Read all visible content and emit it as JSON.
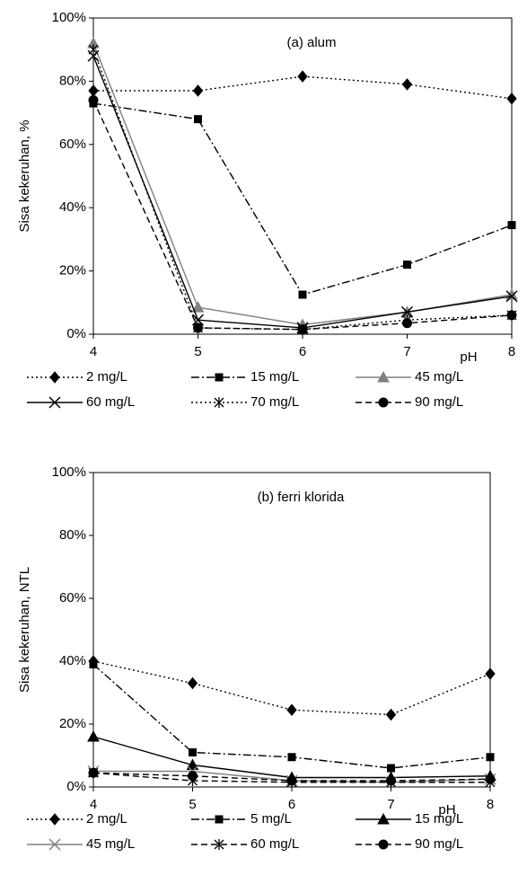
{
  "chart_data": [
    {
      "type": "line",
      "annotation": "(a) alum",
      "ylabel": "Sisa kekeruhan, %",
      "xlabel": "pH",
      "x": [
        4,
        5,
        6,
        7,
        8
      ],
      "xlim": [
        4,
        8
      ],
      "xticks": [
        4,
        5,
        6,
        7,
        8
      ],
      "ylim": [
        0,
        100
      ],
      "yticks": [
        {
          "value": 0,
          "label": "0%"
        },
        {
          "value": 20,
          "label": "20%"
        },
        {
          "value": 40,
          "label": "40%"
        },
        {
          "value": 60,
          "label": "60%"
        },
        {
          "value": 80,
          "label": "80%"
        },
        {
          "value": 100,
          "label": "100%"
        }
      ],
      "grid": false,
      "legend": "bottom",
      "series": [
        {
          "name": "2 mg/L",
          "color": "#000000",
          "marker": "diamond",
          "dash": "dotted",
          "values": [
            77,
            77,
            81.5,
            79,
            74.5
          ]
        },
        {
          "name": "15 mg/L",
          "color": "#000000",
          "marker": "square",
          "dash": "dashdot",
          "values": [
            73,
            68,
            12.5,
            22,
            34.5
          ]
        },
        {
          "name": "45 mg/L",
          "color": "#808080",
          "marker": "triangle",
          "dash": "solid",
          "values": [
            92,
            8.5,
            3,
            7,
            12.5
          ]
        },
        {
          "name": "60 mg/L",
          "color": "#000000",
          "marker": "x",
          "dash": "solid",
          "values": [
            88,
            4.5,
            2,
            7,
            12
          ]
        },
        {
          "name": "70 mg/L",
          "color": "#000000",
          "marker": "asterisk",
          "dash": "dotted",
          "values": [
            90,
            2,
            1.5,
            4.5,
            6
          ]
        },
        {
          "name": "90 mg/L",
          "color": "#000000",
          "marker": "circle",
          "dash": "dashed",
          "values": [
            74,
            2,
            1.5,
            3.5,
            6
          ]
        }
      ]
    },
    {
      "type": "line",
      "annotation": "(b) ferri klorida",
      "ylabel": "Sisa kekeruhan, NTL",
      "xlabel": "pH",
      "x": [
        4,
        5,
        6,
        7,
        8
      ],
      "xlim": [
        4,
        8
      ],
      "xticks": [
        4,
        5,
        6,
        7,
        8
      ],
      "ylim": [
        0,
        100
      ],
      "yticks": [
        {
          "value": 0,
          "label": "0%"
        },
        {
          "value": 20,
          "label": "20%"
        },
        {
          "value": 40,
          "label": "40%"
        },
        {
          "value": 60,
          "label": "60%"
        },
        {
          "value": 80,
          "label": "80%"
        },
        {
          "value": 100,
          "label": "100%"
        }
      ],
      "grid": false,
      "legend": "bottom",
      "series": [
        {
          "name": "2 mg/L",
          "color": "#000000",
          "marker": "diamond",
          "dash": "dotted",
          "values": [
            40,
            33,
            24.5,
            23,
            36
          ]
        },
        {
          "name": "5 mg/L",
          "color": "#000000",
          "marker": "square",
          "dash": "dashdot",
          "values": [
            39,
            11,
            9.5,
            6,
            9.5
          ]
        },
        {
          "name": "15 mg/L",
          "color": "#000000",
          "marker": "triangle",
          "dash": "solid",
          "values": [
            16,
            7,
            3,
            3,
            3.5
          ]
        },
        {
          "name": "45 mg/L",
          "color": "#808080",
          "marker": "x",
          "dash": "solid",
          "values": [
            5,
            5,
            2,
            1.5,
            2.5
          ]
        },
        {
          "name": "60 mg/L",
          "color": "#000000",
          "marker": "asterisk",
          "dash": "dashed",
          "values": [
            4.5,
            2,
            1.5,
            1.5,
            1.5
          ]
        },
        {
          "name": "90 mg/L",
          "color": "#000000",
          "marker": "circle",
          "dash": "dashed",
          "values": [
            4.5,
            3.5,
            2,
            2,
            2.5
          ]
        }
      ]
    }
  ]
}
